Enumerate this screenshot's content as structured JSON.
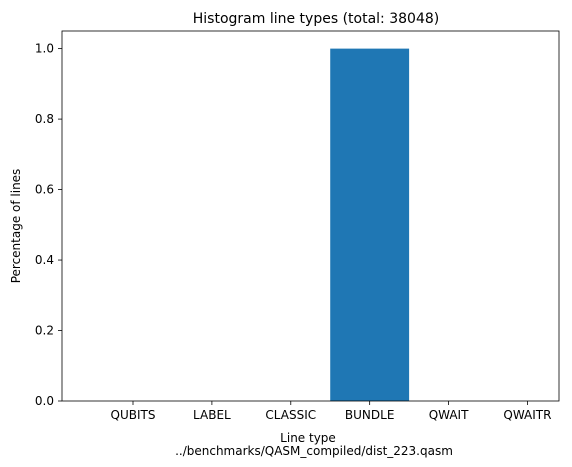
{
  "chart_data": {
    "type": "bar",
    "title": "Histogram line types (total: 38048)",
    "xlabel": "Line type",
    "subxlabel": "../benchmarks/QASM_compiled/dist_223.qasm",
    "ylabel": "Percentage of lines",
    "categories": [
      "QUBITS",
      "LABEL",
      "CLASSIC",
      "BUNDLE",
      "QWAIT",
      "QWAITR"
    ],
    "values": [
      0.0,
      0.0,
      0.0,
      1.0,
      0.0,
      0.0
    ],
    "ylim": [
      0.0,
      1.05
    ],
    "yticks": [
      "0.0",
      "0.2",
      "0.4",
      "0.6",
      "0.8",
      "1.0"
    ],
    "bar_color": "#1f77b4",
    "grid": false,
    "legend": "none"
  }
}
